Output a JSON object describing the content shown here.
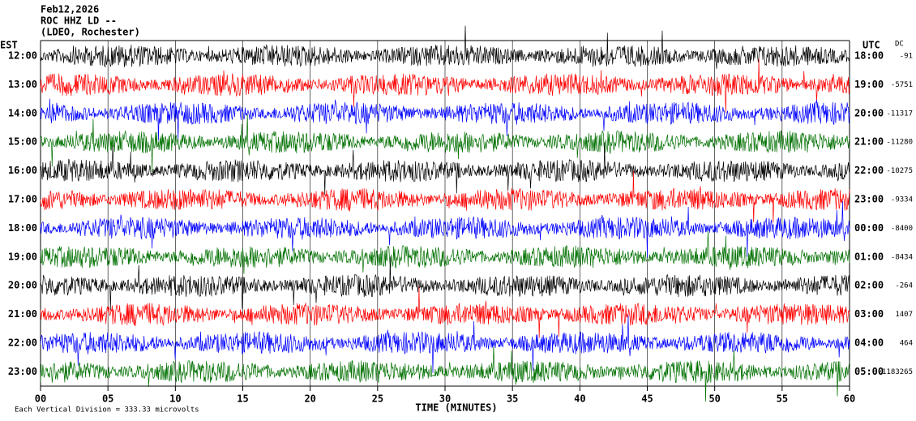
{
  "chart_data": {
    "type": "helicorder",
    "title": "Feb12,2026",
    "subtitle": "ROC HHZ LD --",
    "source": "(LDEO, Rochester)",
    "left_axis_label": "EST",
    "right_axis_label": "UTC",
    "dc_label": "DC",
    "xlabel": "TIME (MINUTES)",
    "note": "Each Vertical Division = 333.33 microvolts",
    "xlim": [
      0,
      60
    ],
    "xticks": [
      {
        "value": 0,
        "label": "00"
      },
      {
        "value": 5,
        "label": "05"
      },
      10,
      15,
      20,
      25,
      30,
      35,
      40,
      45,
      50,
      55,
      60
    ],
    "grid": true,
    "rows": [
      {
        "est": "12:00",
        "utc": "18:00",
        "dc": "-91",
        "color": "#000000"
      },
      {
        "est": "13:00",
        "utc": "19:00",
        "dc": "-5751",
        "color": "#ff0000"
      },
      {
        "est": "14:00",
        "utc": "20:00",
        "dc": "-11317",
        "color": "#0000ff"
      },
      {
        "est": "15:00",
        "utc": "21:00",
        "dc": "-11280",
        "color": "#007000"
      },
      {
        "est": "16:00",
        "utc": "22:00",
        "dc": "-10275",
        "color": "#000000"
      },
      {
        "est": "17:00",
        "utc": "23:00",
        "dc": "-9334",
        "color": "#ff0000"
      },
      {
        "est": "18:00",
        "utc": "00:00",
        "dc": "-8400",
        "color": "#0000ff"
      },
      {
        "est": "19:00",
        "utc": "01:00",
        "dc": "-8434",
        "color": "#007000"
      },
      {
        "est": "20:00",
        "utc": "02:00",
        "dc": "-264",
        "color": "#000000"
      },
      {
        "est": "21:00",
        "utc": "03:00",
        "dc": "1407",
        "color": "#ff0000"
      },
      {
        "est": "22:00",
        "utc": "04:00",
        "dc": "464",
        "color": "#0000ff"
      },
      {
        "est": "23:00",
        "utc": "05:00",
        "dc": "-1183265",
        "color": "#007000"
      }
    ]
  }
}
